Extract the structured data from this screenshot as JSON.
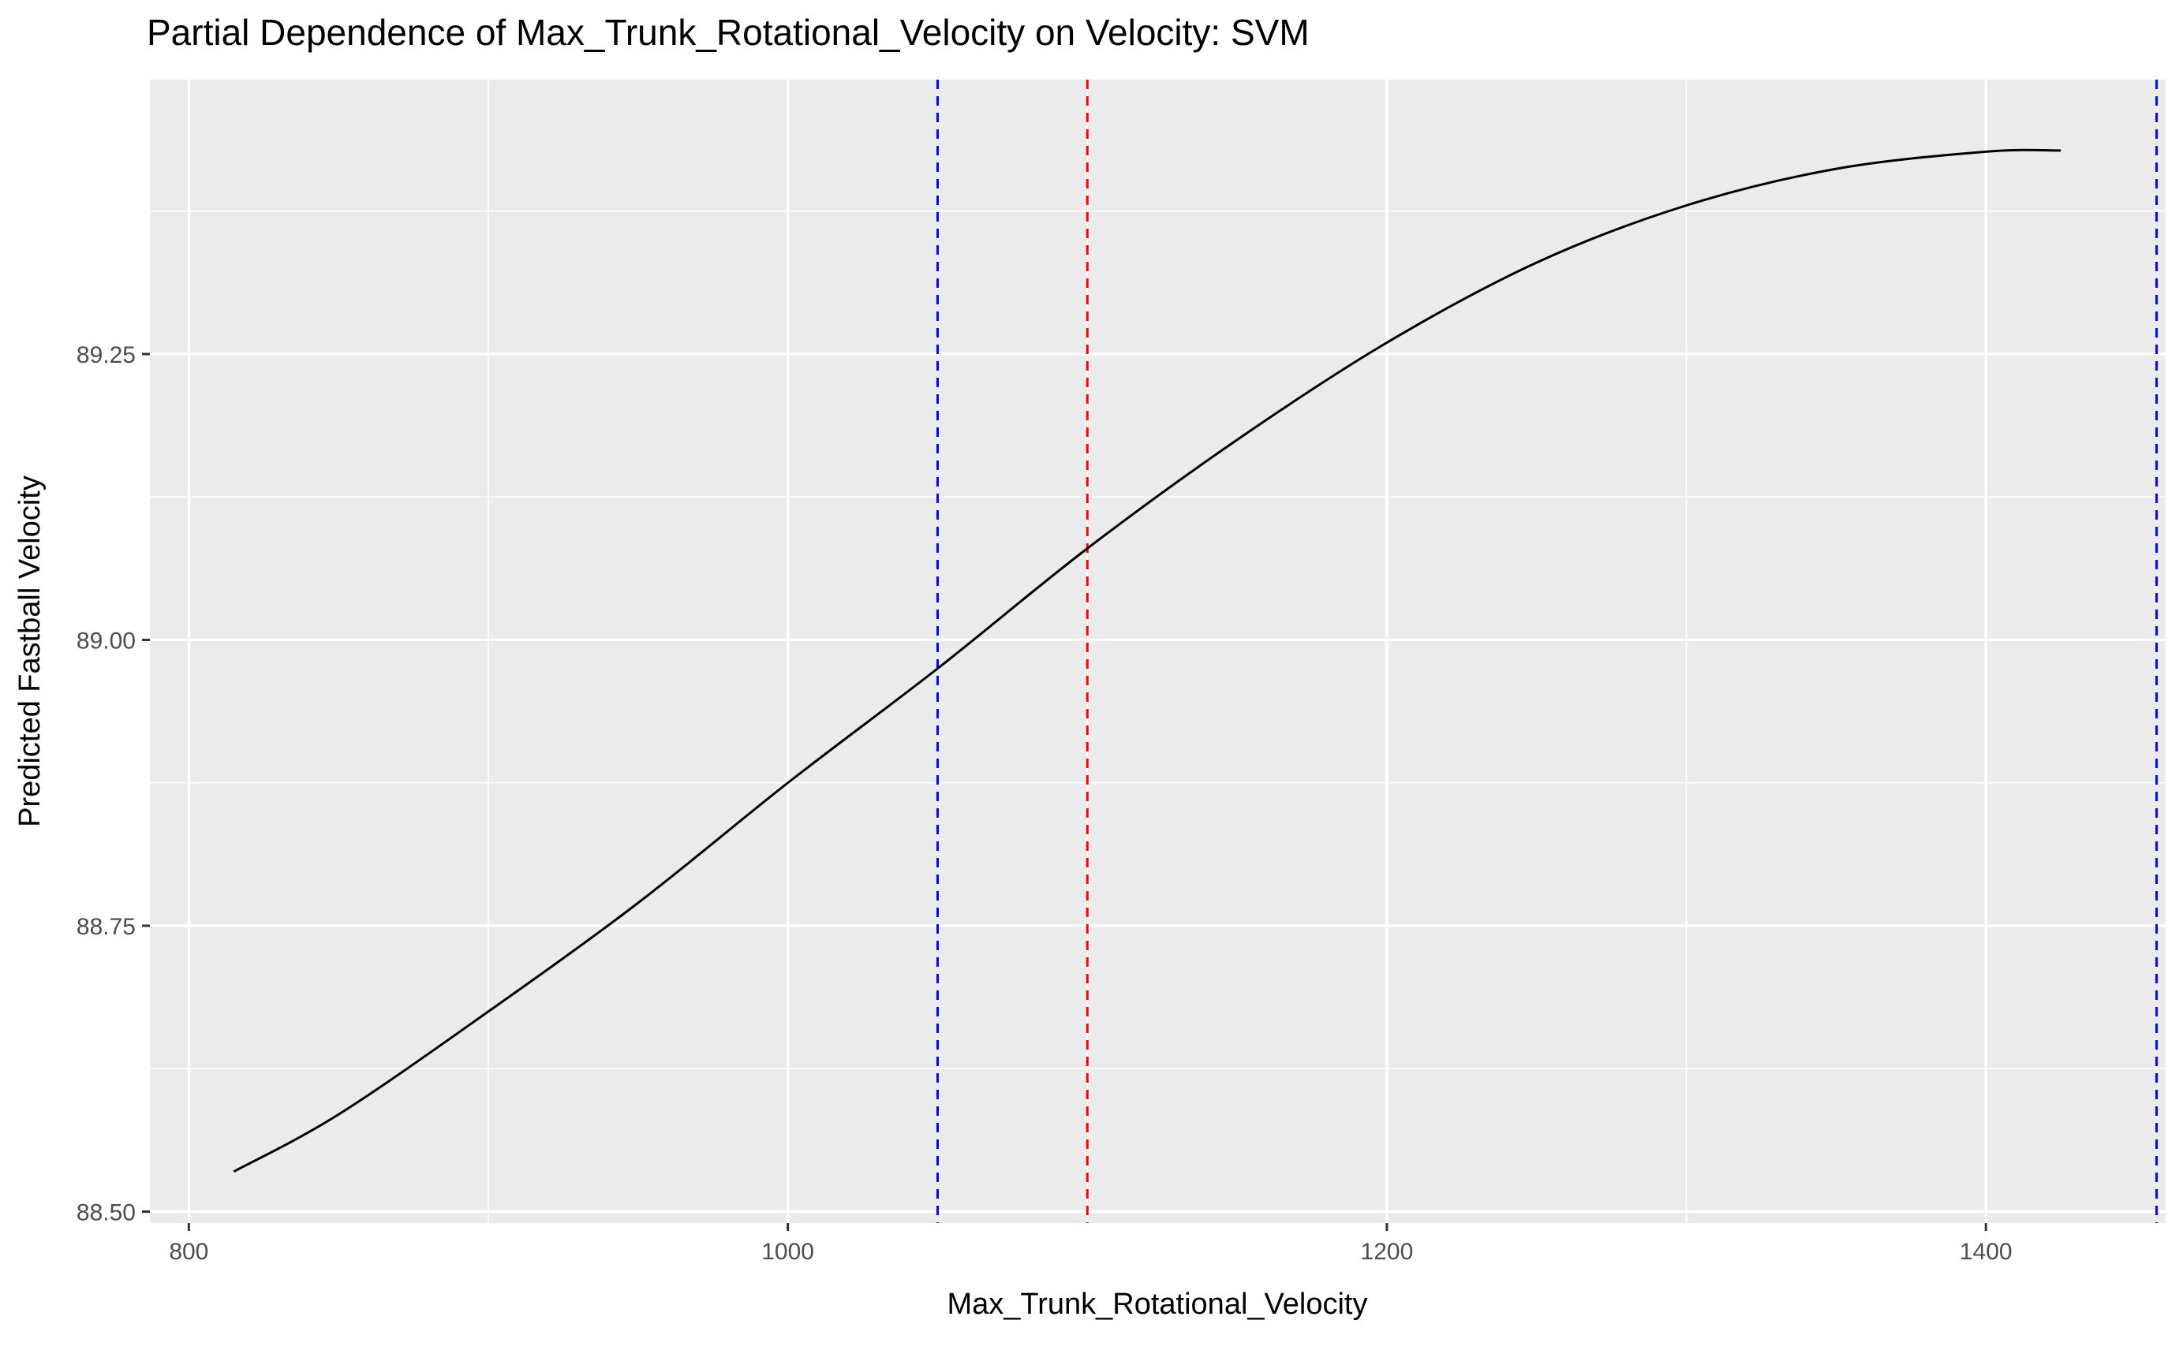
{
  "chart_data": {
    "type": "line",
    "title": "Partial Dependence of Max_Trunk_Rotational_Velocity on Velocity: SVM",
    "xlabel": "Max_Trunk_Rotational_Velocity",
    "ylabel": "Predicted Fastball Velocity",
    "xlim": [
      787,
      1460
    ],
    "ylim": [
      88.49,
      89.49
    ],
    "x_ticks": [
      800,
      1000,
      1200,
      1400
    ],
    "y_ticks": [
      88.5,
      88.75,
      89.0,
      89.25
    ],
    "x_tick_labels": [
      "800",
      "1000",
      "1200",
      "1400"
    ],
    "y_tick_labels": [
      "88.50",
      "88.75",
      "89.00",
      "89.25"
    ],
    "grid": true,
    "background": "#ebebeb",
    "series": [
      {
        "color": "#000000",
        "x": [
          815,
          850,
          900,
          950,
          1000,
          1050,
          1100,
          1150,
          1200,
          1250,
          1300,
          1350,
          1400,
          1425
        ],
        "y": [
          88.535,
          88.585,
          88.675,
          88.77,
          88.875,
          88.975,
          89.08,
          89.175,
          89.26,
          89.33,
          89.38,
          89.412,
          89.427,
          89.428
        ]
      }
    ],
    "vlines": [
      {
        "x": 1050,
        "color": "#0000ff",
        "style": "dashed"
      },
      {
        "x": 1100,
        "color": "#ff0000",
        "style": "dashed"
      },
      {
        "x": 1457,
        "color": "#0000ff",
        "style": "dashed"
      }
    ]
  }
}
